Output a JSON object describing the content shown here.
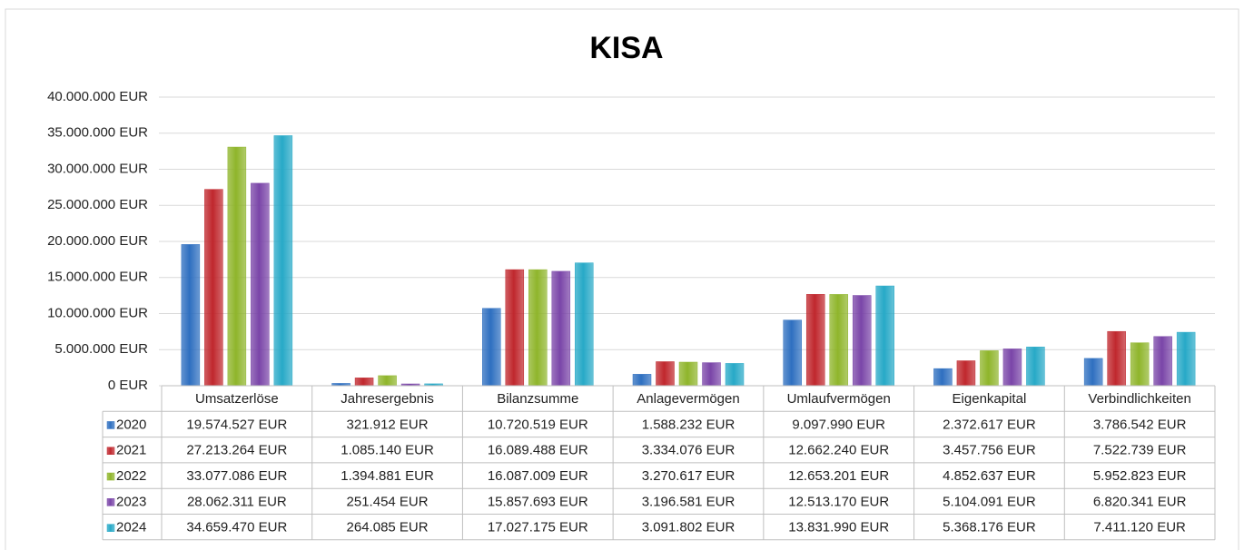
{
  "chart_data": {
    "type": "bar",
    "title": "KISA",
    "categories": [
      "Umsatzerlöse",
      "Jahresergebnis",
      "Bilanzsumme",
      "Anlagevermögen",
      "Umlaufvermögen",
      "Eigenkapital",
      "Verbindlichkeiten"
    ],
    "series": [
      {
        "name": "2020",
        "color": "#2e6fc0",
        "values": [
          19574527,
          321912,
          10720519,
          1588232,
          9097990,
          2372617,
          3786542
        ],
        "value_labels": [
          "19.574.527 EUR",
          "321.912 EUR",
          "10.720.519 EUR",
          "1.588.232 EUR",
          "9.097.990 EUR",
          "2.372.617 EUR",
          "3.786.542 EUR"
        ]
      },
      {
        "name": "2021",
        "color": "#c0272d",
        "values": [
          27213264,
          1085140,
          16089488,
          3334076,
          12662240,
          3457756,
          7522739
        ],
        "value_labels": [
          "27.213.264 EUR",
          "1.085.140 EUR",
          "16.089.488 EUR",
          "3.334.076 EUR",
          "12.662.240 EUR",
          "3.457.756 EUR",
          "7.522.739 EUR"
        ]
      },
      {
        "name": "2022",
        "color": "#8fb52b",
        "values": [
          33077086,
          1394881,
          16087009,
          3270617,
          12653201,
          4852637,
          5952823
        ],
        "value_labels": [
          "33.077.086 EUR",
          "1.394.881 EUR",
          "16.087.009 EUR",
          "3.270.617 EUR",
          "12.653.201 EUR",
          "4.852.637 EUR",
          "5.952.823 EUR"
        ]
      },
      {
        "name": "2023",
        "color": "#7a45a8",
        "values": [
          28062311,
          251454,
          15857693,
          3196581,
          12513170,
          5104091,
          6820341
        ],
        "value_labels": [
          "28.062.311 EUR",
          "251.454 EUR",
          "15.857.693 EUR",
          "3.196.581 EUR",
          "12.513.170 EUR",
          "5.104.091 EUR",
          "6.820.341 EUR"
        ]
      },
      {
        "name": "2024",
        "color": "#27a9c7",
        "values": [
          34659470,
          264085,
          17027175,
          3091802,
          13831990,
          5368176,
          7411120
        ],
        "value_labels": [
          "34.659.470 EUR",
          "264.085 EUR",
          "17.027.175 EUR",
          "3.091.802 EUR",
          "13.831.990 EUR",
          "5.368.176 EUR",
          "7.411.120 EUR"
        ]
      }
    ],
    "ylim": [
      0,
      40000000
    ],
    "yticks": [
      {
        "value": 0,
        "label": "0 EUR"
      },
      {
        "value": 5000000,
        "label": "5.000.000 EUR"
      },
      {
        "value": 10000000,
        "label": "10.000.000 EUR"
      },
      {
        "value": 15000000,
        "label": "15.000.000 EUR"
      },
      {
        "value": 20000000,
        "label": "20.000.000 EUR"
      },
      {
        "value": 25000000,
        "label": "25.000.000 EUR"
      },
      {
        "value": 30000000,
        "label": "30.000.000 EUR"
      },
      {
        "value": 35000000,
        "label": "35.000.000 EUR"
      },
      {
        "value": 40000000,
        "label": "40.000.000 EUR"
      }
    ],
    "grid": true
  }
}
